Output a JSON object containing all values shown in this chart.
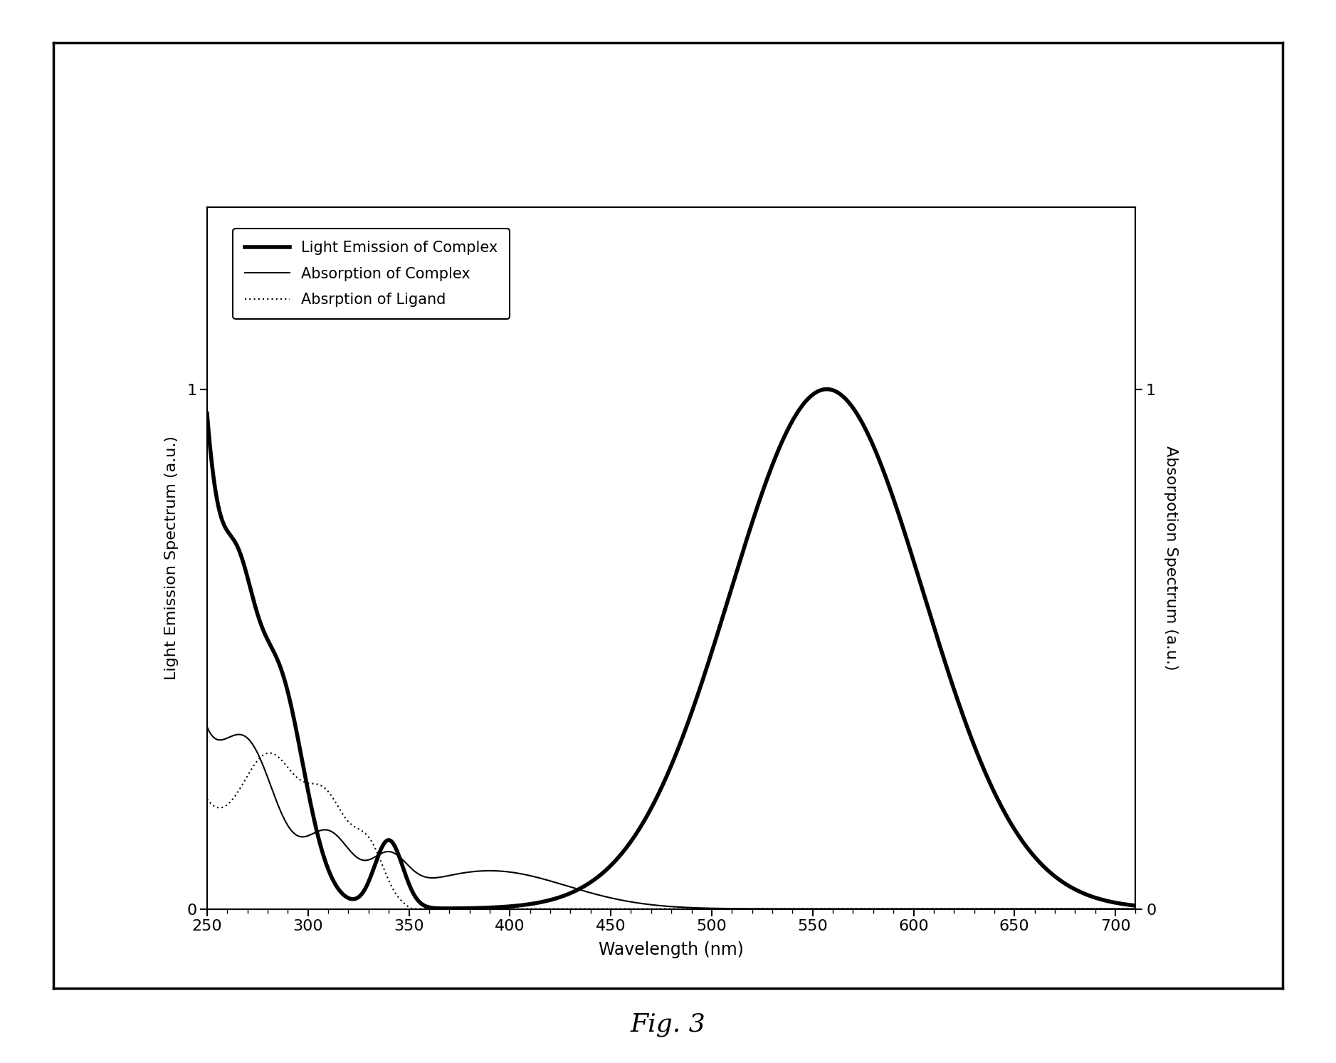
{
  "title": "Fig. 3",
  "xlabel": "Wavelength (nm)",
  "ylabel_left": "Light Emission Spectrum (a.u.)",
  "ylabel_right": "Absorpotion Spectrum (a.u.)",
  "xlim": [
    250,
    710
  ],
  "ylim_left": [
    0,
    1.35
  ],
  "ylim_right": [
    0,
    1.35
  ],
  "xticks": [
    250,
    300,
    350,
    400,
    450,
    500,
    550,
    600,
    650,
    700
  ],
  "legend_entries": [
    "Light Emission of Complex",
    "Absorption of Complex",
    "Absrption of Ligand"
  ],
  "background_color": "#ffffff"
}
